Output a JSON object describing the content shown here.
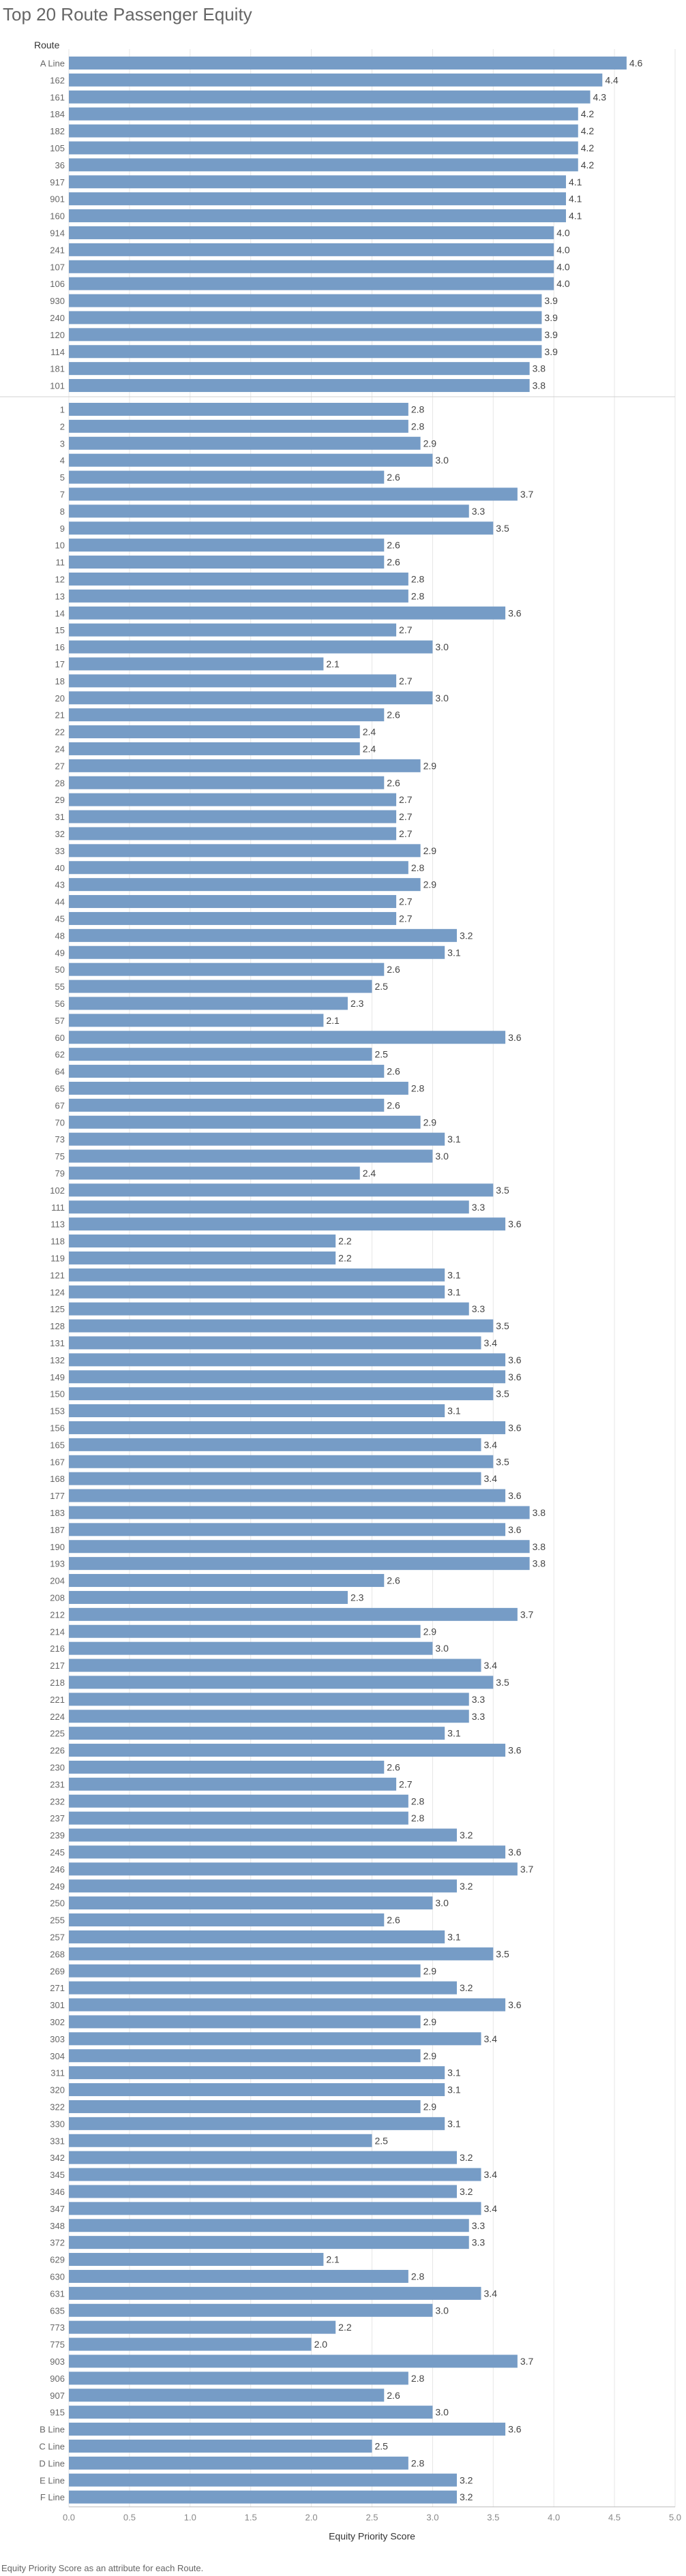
{
  "title": "Top 20 Route Passenger Equity",
  "row_header": "Route",
  "footnote": "Equity Priority Score as an attribute for each Route.",
  "colors": {
    "bar": "#769cc6",
    "grid": "#e6e6e6",
    "text": "#555555"
  },
  "chart_data": {
    "type": "bar",
    "orientation": "horizontal",
    "title": "Top 20 Route Passenger Equity",
    "xlabel": "Equity Priority Score",
    "ylabel": "Route",
    "xlim": [
      0,
      5
    ],
    "xticks": [
      "0.0",
      "0.5",
      "1.0",
      "1.5",
      "2.0",
      "2.5",
      "3.0",
      "3.5",
      "4.0",
      "4.5",
      "5.0"
    ],
    "grid": true,
    "groups": [
      {
        "categories": [
          "A Line",
          "162",
          "161",
          "184",
          "182",
          "105",
          "36",
          "917",
          "901",
          "160",
          "914",
          "241",
          "107",
          "106",
          "930",
          "240",
          "120",
          "114",
          "181",
          "101"
        ],
        "values": [
          4.6,
          4.4,
          4.3,
          4.2,
          4.2,
          4.2,
          4.2,
          4.1,
          4.1,
          4.1,
          4.0,
          4.0,
          4.0,
          4.0,
          3.9,
          3.9,
          3.9,
          3.9,
          3.8,
          3.8
        ]
      },
      {
        "categories": [
          "1",
          "2",
          "3",
          "4",
          "5",
          "7",
          "8",
          "9",
          "10",
          "11",
          "12",
          "13",
          "14",
          "15",
          "16",
          "17",
          "18",
          "20",
          "21",
          "22",
          "24",
          "27",
          "28",
          "29",
          "31",
          "32",
          "33",
          "40",
          "43",
          "44",
          "45",
          "48",
          "49",
          "50",
          "55",
          "56",
          "57",
          "60",
          "62",
          "64",
          "65",
          "67",
          "70",
          "73",
          "75",
          "79",
          "102",
          "111",
          "113",
          "118",
          "119",
          "121",
          "124",
          "125",
          "128",
          "131",
          "132",
          "149",
          "150",
          "153",
          "156",
          "165",
          "167",
          "168",
          "177",
          "183",
          "187",
          "190",
          "193",
          "204",
          "208",
          "212",
          "214",
          "216",
          "217",
          "218",
          "221",
          "224",
          "225",
          "226",
          "230",
          "231",
          "232",
          "237",
          "239",
          "245",
          "246",
          "249",
          "250",
          "255",
          "257",
          "268",
          "269",
          "271",
          "301",
          "302",
          "303",
          "304",
          "311",
          "320",
          "322",
          "330",
          "331",
          "342",
          "345",
          "346",
          "347",
          "348",
          "372",
          "629",
          "630",
          "631",
          "635",
          "773",
          "775",
          "903",
          "906",
          "907",
          "915",
          "B Line",
          "C Line",
          "D Line",
          "E Line",
          "F Line"
        ],
        "values": [
          2.8,
          2.8,
          2.9,
          3.0,
          2.6,
          3.7,
          3.3,
          3.5,
          2.6,
          2.6,
          2.8,
          2.8,
          3.6,
          2.7,
          3.0,
          2.1,
          2.7,
          3.0,
          2.6,
          2.4,
          2.4,
          2.9,
          2.6,
          2.7,
          2.7,
          2.7,
          2.9,
          2.8,
          2.9,
          2.7,
          2.7,
          3.2,
          3.1,
          2.6,
          2.5,
          2.3,
          2.1,
          3.6,
          2.5,
          2.6,
          2.8,
          2.6,
          2.9,
          3.1,
          3.0,
          2.4,
          3.5,
          3.3,
          3.6,
          2.2,
          2.2,
          3.1,
          3.1,
          3.3,
          3.5,
          3.4,
          3.6,
          3.6,
          3.5,
          3.1,
          3.6,
          3.4,
          3.5,
          3.4,
          3.6,
          3.8,
          3.6,
          3.8,
          3.8,
          2.6,
          2.3,
          3.7,
          2.9,
          3.0,
          3.4,
          3.5,
          3.3,
          3.3,
          3.1,
          3.6,
          2.6,
          2.7,
          2.8,
          2.8,
          3.2,
          3.6,
          3.7,
          3.2,
          3.0,
          2.6,
          3.1,
          3.5,
          2.9,
          3.2,
          3.6,
          2.9,
          3.4,
          2.9,
          3.1,
          3.1,
          2.9,
          3.1,
          2.5,
          3.2,
          3.4,
          3.2,
          3.4,
          3.3,
          3.3,
          2.1,
          2.8,
          3.4,
          3.0,
          2.2,
          2.0,
          3.7,
          2.8,
          2.6,
          3.0,
          3.6,
          2.5,
          2.8,
          3.2,
          3.2
        ]
      }
    ]
  }
}
